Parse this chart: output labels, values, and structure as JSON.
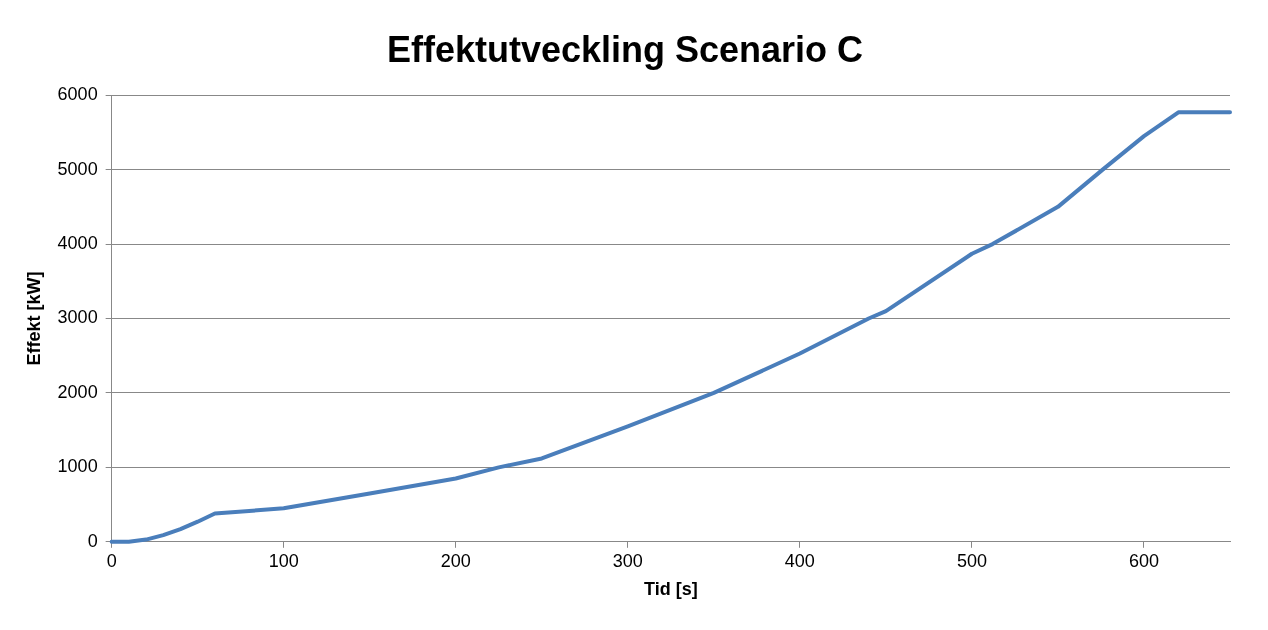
{
  "chart_data": {
    "type": "line",
    "title": "Effektutveckling Scenario C",
    "xlabel": "Tid [s]",
    "ylabel": "Effekt [kW]",
    "x": [
      0,
      10,
      20,
      30,
      40,
      50,
      60,
      100,
      150,
      200,
      225,
      250,
      300,
      350,
      400,
      440,
      450,
      500,
      512,
      550,
      576,
      600,
      620,
      650
    ],
    "series": [
      {
        "color": "#4a7ebb",
        "values": [
          0,
          0,
          30,
          90,
          170,
          270,
          380,
          450,
          650,
          850,
          1000,
          1120,
          1550,
          2000,
          2530,
          3000,
          3100,
          3870,
          4000,
          4500,
          5000,
          5450,
          5770,
          5770
        ]
      }
    ],
    "xlim": [
      0,
      650
    ],
    "xticks": [
      0,
      100,
      200,
      300,
      400,
      500,
      600
    ],
    "ylim": [
      0,
      6000
    ],
    "yticks": [
      0,
      1000,
      2000,
      3000,
      4000,
      5000,
      6000
    ],
    "grid": "y",
    "legend": false,
    "marker": "none",
    "line_style": "solid"
  }
}
